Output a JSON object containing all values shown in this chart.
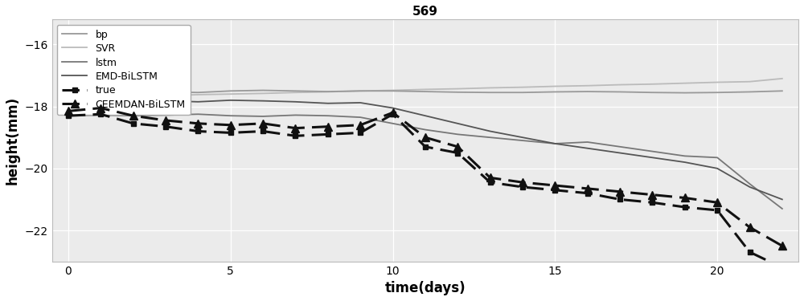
{
  "title": "569",
  "xlabel": "time(days)",
  "ylabel": "height(mm)",
  "xlim": [
    -0.5,
    22.5
  ],
  "ylim": [
    -23.0,
    -15.2
  ],
  "yticks": [
    -22,
    -20,
    -18,
    -16
  ],
  "xticks": [
    0,
    5,
    10,
    15,
    20
  ],
  "background_color": "#ebebeb",
  "series": {
    "bp": {
      "x": [
        0,
        1,
        2,
        3,
        4,
        5,
        6,
        7,
        8,
        9,
        10,
        11,
        12,
        13,
        14,
        15,
        16,
        17,
        18,
        19,
        20,
        21,
        22
      ],
      "y": [
        -17.55,
        -17.52,
        -17.5,
        -17.53,
        -17.55,
        -17.5,
        -17.48,
        -17.5,
        -17.52,
        -17.5,
        -17.5,
        -17.52,
        -17.54,
        -17.55,
        -17.55,
        -17.53,
        -17.52,
        -17.53,
        -17.55,
        -17.56,
        -17.55,
        -17.53,
        -17.5
      ],
      "color": "#999999",
      "linestyle": "-",
      "linewidth": 1.3,
      "marker": null,
      "markersize": null,
      "dashes": null,
      "zorder": 3
    },
    "SVR": {
      "x": [
        0,
        1,
        2,
        3,
        4,
        5,
        6,
        7,
        8,
        9,
        10,
        11,
        12,
        13,
        14,
        15,
        16,
        17,
        18,
        19,
        20,
        21,
        22
      ],
      "y": [
        -17.75,
        -17.7,
        -17.68,
        -17.65,
        -17.62,
        -17.6,
        -17.58,
        -17.55,
        -17.53,
        -17.5,
        -17.48,
        -17.45,
        -17.43,
        -17.4,
        -17.38,
        -17.35,
        -17.33,
        -17.3,
        -17.28,
        -17.25,
        -17.22,
        -17.2,
        -17.1
      ],
      "color": "#bbbbbb",
      "linestyle": "-",
      "linewidth": 1.3,
      "marker": null,
      "markersize": null,
      "dashes": null,
      "zorder": 2
    },
    "lstm": {
      "x": [
        0,
        1,
        2,
        3,
        4,
        5,
        6,
        7,
        8,
        9,
        10,
        11,
        12,
        13,
        14,
        15,
        16,
        17,
        18,
        19,
        20,
        21,
        22
      ],
      "y": [
        -18.3,
        -18.28,
        -18.3,
        -18.28,
        -18.25,
        -18.3,
        -18.32,
        -18.28,
        -18.3,
        -18.35,
        -18.55,
        -18.75,
        -18.9,
        -19.0,
        -19.1,
        -19.2,
        -19.15,
        -19.3,
        -19.45,
        -19.6,
        -19.65,
        -20.5,
        -21.3
      ],
      "color": "#777777",
      "linestyle": "-",
      "linewidth": 1.3,
      "marker": null,
      "markersize": null,
      "dashes": null,
      "zorder": 4
    },
    "EMD-BiLSTM": {
      "x": [
        0,
        1,
        2,
        3,
        4,
        5,
        6,
        7,
        8,
        9,
        10,
        11,
        12,
        13,
        14,
        15,
        16,
        17,
        18,
        19,
        20,
        21,
        22
      ],
      "y": [
        -17.8,
        -17.78,
        -17.8,
        -17.82,
        -17.85,
        -17.8,
        -17.82,
        -17.85,
        -17.9,
        -17.88,
        -18.05,
        -18.3,
        -18.55,
        -18.8,
        -19.0,
        -19.2,
        -19.35,
        -19.5,
        -19.65,
        -19.8,
        -20.0,
        -20.6,
        -21.0
      ],
      "color": "#555555",
      "linestyle": "-",
      "linewidth": 1.3,
      "marker": null,
      "markersize": null,
      "dashes": null,
      "zorder": 5
    },
    "true": {
      "x": [
        0,
        1,
        2,
        3,
        4,
        5,
        6,
        7,
        8,
        9,
        10,
        11,
        12,
        13,
        14,
        15,
        16,
        17,
        18,
        19,
        20,
        21,
        22
      ],
      "y": [
        -18.3,
        -18.25,
        -18.55,
        -18.65,
        -18.8,
        -18.85,
        -18.8,
        -18.95,
        -18.9,
        -18.85,
        -18.25,
        -19.3,
        -19.5,
        -20.45,
        -20.6,
        -20.7,
        -20.8,
        -21.0,
        -21.1,
        -21.25,
        -21.35,
        -22.7,
        -23.2
      ],
      "color": "#111111",
      "linestyle": "--",
      "linewidth": 2.2,
      "marker": "s",
      "markersize": 5,
      "dashes": [
        7,
        3
      ],
      "zorder": 7
    },
    "CEEMDAN-BiLSTM": {
      "x": [
        0,
        1,
        2,
        3,
        4,
        5,
        6,
        7,
        8,
        9,
        10,
        11,
        12,
        13,
        14,
        15,
        16,
        17,
        18,
        19,
        20,
        21,
        22
      ],
      "y": [
        -18.15,
        -18.05,
        -18.3,
        -18.45,
        -18.55,
        -18.6,
        -18.55,
        -18.7,
        -18.65,
        -18.6,
        -18.2,
        -19.0,
        -19.3,
        -20.3,
        -20.45,
        -20.55,
        -20.65,
        -20.75,
        -20.85,
        -20.95,
        -21.1,
        -21.9,
        -22.5
      ],
      "color": "#111111",
      "linestyle": "--",
      "linewidth": 2.2,
      "marker": "^",
      "markersize": 7,
      "dashes": [
        7,
        3
      ],
      "zorder": 6
    }
  }
}
